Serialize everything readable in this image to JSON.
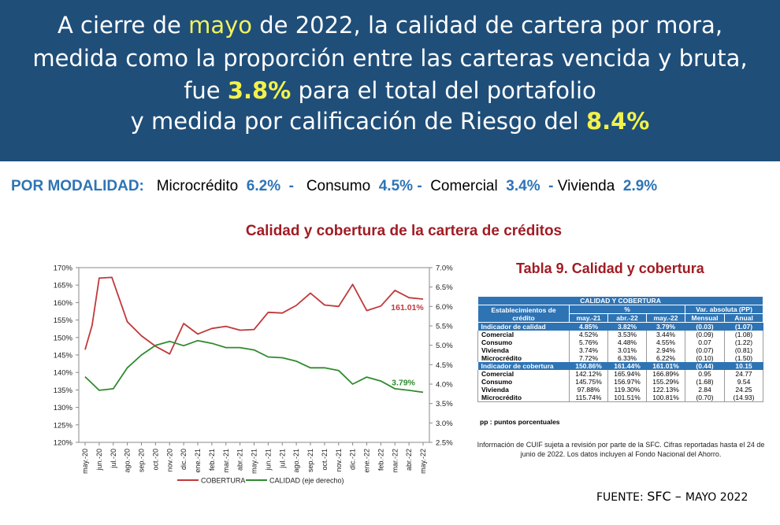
{
  "banner": {
    "line1_pre": "A  cierre de ",
    "line1_hl": "mayo",
    "line1_post": " de 2022, la calidad de cartera por mora,",
    "line2": "medida como la proporción entre las carteras vencida y bruta,",
    "line3_pre": "fue ",
    "line3_hl": "3.8%",
    "line3_post": " para el total del portafolio",
    "line4_pre": "y medida por calificación de Riesgo del ",
    "line4_hl": "8.4%"
  },
  "modalidad": {
    "label": "POR MODALIDAD:",
    "items": [
      {
        "name": "Microcrédito",
        "value": "6.2%",
        "sep": "-"
      },
      {
        "name": "Consumo",
        "value": "4.5%",
        "sep": "-"
      },
      {
        "name": "Comercial",
        "value": "3.4%",
        "sep": "-"
      },
      {
        "name": "Vivienda",
        "value": "2.9%",
        "sep": ""
      }
    ]
  },
  "chart_data": {
    "type": "line",
    "title": "Calidad y cobertura de la cartera de créditos",
    "categories": [
      "may.-20",
      "jun.-20",
      "jul.-20",
      "ago.-20",
      "sep.-20",
      "oct.-20",
      "nov.-20",
      "dic.-20",
      "ene.-21",
      "feb.-21",
      "mar.-21",
      "abr.-21",
      "may.-21",
      "jun.-21",
      "jul.-21",
      "ago.-21",
      "sep.-21",
      "oct.-21",
      "nov.-21",
      "dic.-21",
      "ene.-22",
      "feb.-22",
      "mar.-22",
      "abr.-22",
      "may.-22"
    ],
    "x_tick_labels": [
      "may.-20",
      "jun.-20",
      "jul.-20",
      "ago.-20",
      "sep.-20",
      "oct.-20",
      "nov.-20",
      "dic.-20",
      "ene.-21",
      "feb.-21",
      "mar.-21",
      "abr.-21",
      "may.-21",
      "jun.-21",
      "jul.-21",
      "ago.-21",
      "sep.-21",
      "oct.-21",
      "nov.-21",
      "dic.-21",
      "ene.-22",
      "feb.-22",
      "mar.-22",
      "abr.-22",
      "may.-22"
    ],
    "y_left": {
      "min": 120,
      "max": 170,
      "ticks": [
        "120%",
        "125%",
        "130%",
        "135%",
        "140%",
        "145%",
        "150%",
        "155%",
        "160%",
        "165%",
        "170%"
      ]
    },
    "y_right": {
      "label": "eje derecho",
      "min": 2.5,
      "max": 7.0,
      "ticks": [
        "2.5%",
        "3.0%",
        "3.5%",
        "4.0%",
        "4.5%",
        "5.0%",
        "5.5%",
        "6.0%",
        "6.5%",
        "7.0%"
      ]
    },
    "series": [
      {
        "name": "COBERTURA",
        "axis": "left",
        "color": "#c0393b",
        "points": [
          [
            0,
            146.5
          ],
          [
            0.5,
            153.5
          ],
          [
            1,
            167.0
          ],
          [
            1.9,
            167.2
          ],
          [
            3,
            154.5
          ],
          [
            4,
            150.5
          ],
          [
            5,
            147.5
          ],
          [
            6,
            145.3
          ],
          [
            7,
            154.0
          ],
          [
            8,
            151.0
          ],
          [
            9,
            152.6
          ],
          [
            10,
            153.2
          ],
          [
            11,
            152.1
          ],
          [
            12,
            152.3
          ],
          [
            13,
            157.2
          ],
          [
            14,
            157.0
          ],
          [
            15,
            159.2
          ],
          [
            16,
            162.7
          ],
          [
            17,
            159.3
          ],
          [
            18,
            158.9
          ],
          [
            19,
            165.2
          ],
          [
            20,
            157.7
          ],
          [
            21,
            159.0
          ],
          [
            22,
            163.5
          ],
          [
            23,
            161.4
          ],
          [
            24,
            161.0
          ]
        ]
      },
      {
        "name": "CALIDAD (eje derecho)",
        "axis": "right",
        "color": "#2e8b2e",
        "points": [
          [
            0,
            4.19
          ],
          [
            1,
            3.84
          ],
          [
            2,
            3.88
          ],
          [
            3,
            4.42
          ],
          [
            4,
            4.75
          ],
          [
            5,
            5.0
          ],
          [
            6,
            5.1
          ],
          [
            7,
            4.99
          ],
          [
            8,
            5.12
          ],
          [
            9,
            5.05
          ],
          [
            10,
            4.94
          ],
          [
            11,
            4.94
          ],
          [
            12,
            4.88
          ],
          [
            13,
            4.7
          ],
          [
            14,
            4.68
          ],
          [
            15,
            4.59
          ],
          [
            16,
            4.42
          ],
          [
            17,
            4.42
          ],
          [
            18,
            4.35
          ],
          [
            19,
            4.0
          ],
          [
            20,
            4.18
          ],
          [
            21,
            4.08
          ],
          [
            22,
            3.88
          ],
          [
            23,
            3.84
          ],
          [
            24,
            3.79
          ]
        ]
      }
    ],
    "annotations": [
      {
        "text": "161.01%",
        "series": "COBERTURA"
      },
      {
        "text": "3.79%",
        "series": "CALIDAD (eje derecho)"
      }
    ],
    "legend": {
      "position": "bottom",
      "items": [
        "COBERTURA",
        "CALIDAD (eje derecho)"
      ]
    }
  },
  "table": {
    "title": "Tabla 9. Calidad y cobertura",
    "caption": "CALIDAD Y COBERTURA",
    "col_est": "Establecimientos de crédito",
    "col_pct": "%",
    "col_var": "Var. absoluta (PP)",
    "sub": [
      "may.-21",
      "abr.-22",
      "may.-22",
      "Mensual",
      "Anual"
    ],
    "rows": [
      {
        "name": "Indicador de calidad",
        "band": true,
        "v": [
          "4.85%",
          "3.82%",
          "3.79%",
          "(0.03)",
          "(1.07)"
        ]
      },
      {
        "name": "Comercial",
        "band": false,
        "v": [
          "4.52%",
          "3.53%",
          "3.44%",
          "(0.09)",
          "(1.08)"
        ]
      },
      {
        "name": "Consumo",
        "band": false,
        "v": [
          "5.76%",
          "4.48%",
          "4.55%",
          "0.07",
          "(1.22)"
        ]
      },
      {
        "name": "Vivienda",
        "band": false,
        "v": [
          "3.74%",
          "3.01%",
          "2.94%",
          "(0.07)",
          "(0.81)"
        ]
      },
      {
        "name": "Microcrédito",
        "band": false,
        "v": [
          "7.72%",
          "6.33%",
          "6.22%",
          "(0.10)",
          "(1.50)"
        ]
      },
      {
        "name": "Indicador de cobertura",
        "band": true,
        "v": [
          "150.86%",
          "161.44%",
          "161.01%",
          "(0.44)",
          "10.15"
        ]
      },
      {
        "name": "Comercial",
        "band": false,
        "v": [
          "142.12%",
          "165.94%",
          "166.89%",
          "0.95",
          "24.77"
        ]
      },
      {
        "name": "Consumo",
        "band": false,
        "v": [
          "145.75%",
          "156.97%",
          "155.29%",
          "(1.68)",
          "9.54"
        ]
      },
      {
        "name": "Vivienda",
        "band": false,
        "v": [
          "97.88%",
          "119.30%",
          "122.13%",
          "2.84",
          "24.25"
        ]
      },
      {
        "name": "Microcrédito",
        "band": false,
        "v": [
          "115.74%",
          "101.51%",
          "100.81%",
          "(0.70)",
          "(14.93)"
        ]
      }
    ],
    "footnote": "pp : puntos porcentuales",
    "note": "Información de CUIF sujeta a revisión por parte de la SFC. Cifras reportadas hasta el 24 de junio de 2022. Los datos incluyen al Fondo Nacional del Ahorro."
  },
  "fuente": {
    "pre": "FUENTE: ",
    "sfc": "SFC",
    "dash": " – ",
    "date": "MAYO 2022"
  }
}
